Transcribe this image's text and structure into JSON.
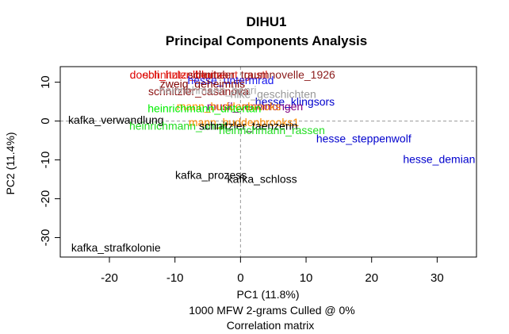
{
  "chart_data": {
    "type": "scatter",
    "title": "DIHU1",
    "subtitle": "Principal Components Analysis",
    "xlabel": "PC1 (11.8%)",
    "ylabel": "PC2 (11.4%)",
    "caption_lines": [
      "1000 MFW 2-grams Culled @ 0%",
      "Correlation matrix"
    ],
    "xlim": [
      -27.5,
      36
    ],
    "ylim": [
      -35,
      14
    ],
    "xticks": [
      -20,
      -10,
      0,
      10,
      20,
      30
    ],
    "yticks": [
      -30,
      -20,
      -10,
      0,
      10
    ],
    "reference_lines": {
      "x": 0,
      "y": 0,
      "style": "dashed",
      "color": "#999999"
    },
    "points": [
      {
        "label": "doebli_hutzelblume",
        "x": -9.6,
        "y": 12.0,
        "color": "#dd0000"
      },
      {
        "label": "schnitzler_lieutnant_gustl",
        "x": -5.4,
        "y": 12.0,
        "color": "#e0281e"
      },
      {
        "label": "schnitzler_traumnovelle_1926",
        "x": 3.2,
        "y": 12.0,
        "color": "#8b1a1a"
      },
      {
        "label": "hesse_untermrad",
        "x": -1.5,
        "y": 10.5,
        "color": "#1a1aee"
      },
      {
        "label": "zweig_geheimnis",
        "x": -5.8,
        "y": 9.6,
        "color": "#800000"
      },
      {
        "label": "schnitzler_casanova",
        "x": -6.4,
        "y": 7.7,
        "color": "#8b1010"
      },
      {
        "label": "hesse_klingsors",
        "x": 8.3,
        "y": 5.0,
        "color": "#0000cd"
      },
      {
        "label": "musil_verwirrungen",
        "x": 2.2,
        "y": 3.8,
        "color": "#800080"
      },
      {
        "label": "mann_buddenbrooks",
        "x": -1.8,
        "y": 3.8,
        "color": "#ff8c00"
      },
      {
        "label": "heinrichmann_untertan",
        "x": -5.5,
        "y": 3.3,
        "color": "#00ee00"
      },
      {
        "label": "heinrichmann_henri",
        "x": -5.0,
        "y": 8.0,
        "color": "#aaaaaa"
      },
      {
        "label": "rilke_geschichten",
        "x": 5.0,
        "y": 7.0,
        "color": "#999999"
      },
      {
        "label": "kafka_verwandlung",
        "x": -19.0,
        "y": 0.3,
        "color": "#000000"
      },
      {
        "label": "heinrichmann_unrat",
        "x": -9.5,
        "y": -1.2,
        "color": "#22dd22"
      },
      {
        "label": "mann_buddenbrooks1",
        "x": 0.5,
        "y": -0.3,
        "color": "#ff8c00"
      },
      {
        "label": "schnitzler_taenzerin",
        "x": 1.2,
        "y": -1.2,
        "color": "#000000"
      },
      {
        "label": "heinrichmann_rassen",
        "x": 4.8,
        "y": -2.3,
        "color": "#22dd22"
      },
      {
        "label": "hesse_steppenwolf",
        "x": 18.8,
        "y": -4.5,
        "color": "#0000cd"
      },
      {
        "label": "hesse_demian",
        "x": 30.3,
        "y": -9.8,
        "color": "#0000cd"
      },
      {
        "label": "kafka_prozess",
        "x": -4.5,
        "y": -13.9,
        "color": "#000000"
      },
      {
        "label": "kafka_schloss",
        "x": 3.3,
        "y": -14.9,
        "color": "#000000"
      },
      {
        "label": "kafka_strafkolonie",
        "x": -19.0,
        "y": -32.5,
        "color": "#000000"
      }
    ]
  }
}
